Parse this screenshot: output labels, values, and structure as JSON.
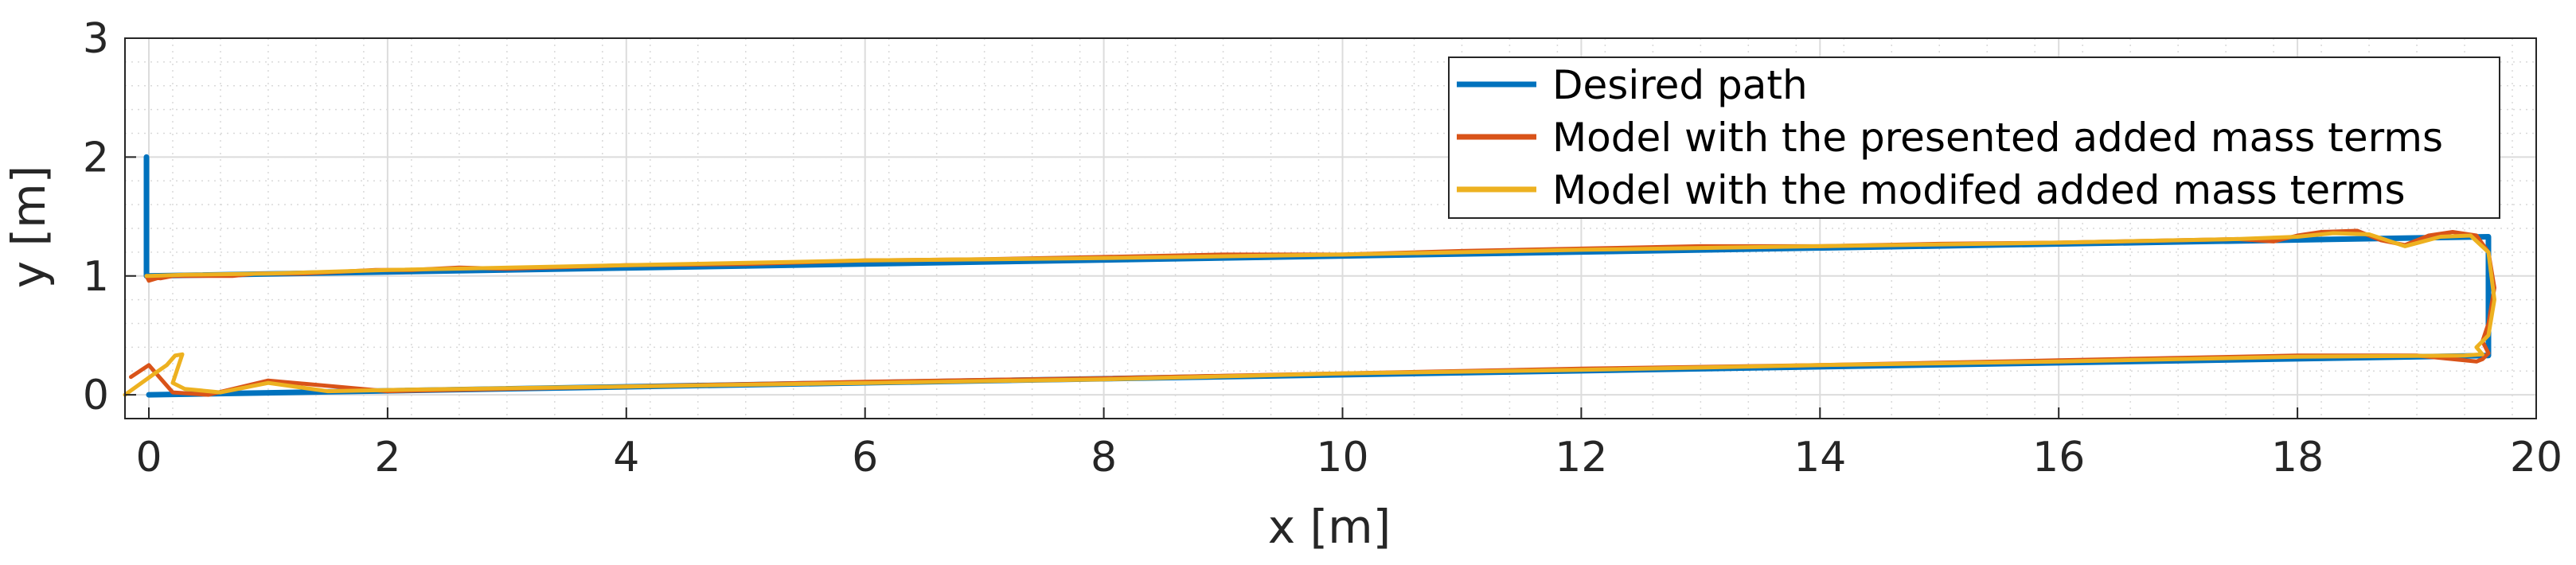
{
  "chart_data": {
    "type": "line",
    "xlabel": "x [m]",
    "ylabel": "y [m]",
    "xlim": [
      -0.2,
      20
    ],
    "ylim": [
      -0.2,
      3
    ],
    "xticks": [
      0,
      2,
      4,
      6,
      8,
      10,
      12,
      14,
      16,
      18,
      20
    ],
    "yticks": [
      0,
      1,
      2,
      3
    ],
    "grid": "major and minor",
    "legend_position": "top-right",
    "series": [
      {
        "name": "Desired path",
        "color": "#0072BD",
        "x": [
          -0.02,
          -0.02,
          19.6,
          19.6,
          0,
          0
        ],
        "y": [
          2.0,
          1.0,
          1.33,
          0.33,
          0.0,
          0.0
        ]
      },
      {
        "name": "Model with the presented added mass terms",
        "color": "#D95319",
        "x": [
          -0.02,
          0.0,
          0.1,
          0.2,
          0.1,
          0.0,
          0.05,
          0.2,
          0.35,
          0.5,
          0.7,
          0.9,
          1.1,
          1.3,
          1.5,
          1.7,
          1.9,
          2.2,
          2.6,
          3.0,
          4.0,
          5.0,
          6.0,
          7.0,
          8.0,
          9.0,
          10.0,
          11.0,
          12.0,
          13.0,
          14.0,
          15.0,
          16.0,
          17.0,
          17.5,
          17.8,
          18.0,
          18.2,
          18.5,
          18.7,
          18.9,
          19.1,
          19.3,
          19.5,
          19.6,
          19.65,
          19.6,
          19.55,
          19.6,
          19.55,
          19.5,
          19.0,
          18.0,
          17.0,
          16.0,
          15.0,
          14.0,
          12.0,
          10.0,
          8.0,
          6.0,
          4.0,
          2.0,
          1.0,
          0.5,
          0.2,
          0.0,
          -0.15
        ],
        "y": [
          1.0,
          0.96,
          0.99,
          1.0,
          0.98,
          0.99,
          1.0,
          1.0,
          1.0,
          1.0,
          1.0,
          1.02,
          1.02,
          1.02,
          1.03,
          1.04,
          1.05,
          1.05,
          1.07,
          1.06,
          1.09,
          1.1,
          1.13,
          1.14,
          1.16,
          1.18,
          1.18,
          1.21,
          1.23,
          1.25,
          1.25,
          1.27,
          1.28,
          1.3,
          1.31,
          1.29,
          1.34,
          1.37,
          1.38,
          1.3,
          1.26,
          1.34,
          1.37,
          1.34,
          1.2,
          0.9,
          0.6,
          0.45,
          0.35,
          0.3,
          0.28,
          0.33,
          0.33,
          0.31,
          0.29,
          0.27,
          0.25,
          0.22,
          0.18,
          0.14,
          0.11,
          0.07,
          0.03,
          0.12,
          0.0,
          0.02,
          0.25,
          0.15
        ]
      },
      {
        "name": "Model with the modifed added mass terms",
        "color": "#EDB120",
        "x": [
          -0.02,
          0.0,
          0.3,
          1.0,
          2.0,
          4.0,
          6.0,
          8.0,
          10.0,
          12.0,
          14.0,
          16.0,
          17.0,
          17.5,
          18.0,
          18.3,
          18.6,
          18.9,
          19.2,
          19.45,
          19.6,
          19.65,
          19.6,
          19.5,
          19.55,
          19.4,
          18.0,
          16.0,
          14.0,
          12.0,
          10.0,
          8.0,
          6.0,
          4.0,
          2.0,
          1.5,
          1.0,
          0.6,
          0.3,
          0.2,
          0.28,
          0.22,
          0.15,
          0.05,
          -0.2
        ],
        "y": [
          1.0,
          1.0,
          1.01,
          1.02,
          1.05,
          1.09,
          1.13,
          1.15,
          1.18,
          1.22,
          1.25,
          1.28,
          1.3,
          1.31,
          1.33,
          1.36,
          1.35,
          1.25,
          1.33,
          1.34,
          1.2,
          0.8,
          0.5,
          0.4,
          0.34,
          0.33,
          0.32,
          0.28,
          0.25,
          0.21,
          0.18,
          0.13,
          0.1,
          0.07,
          0.04,
          0.03,
          0.1,
          0.02,
          0.05,
          0.1,
          0.34,
          0.33,
          0.25,
          0.18,
          0.0
        ]
      }
    ]
  }
}
